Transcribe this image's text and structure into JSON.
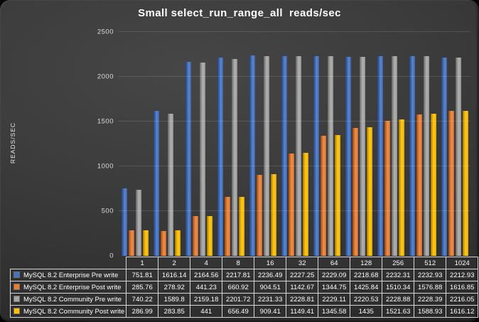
{
  "chart": {
    "title": "Small select_run_range_all  reads/sec",
    "ylabel": "READS/SEC"
  },
  "chart_data": {
    "type": "bar",
    "title": "Small select_run_range_all  reads/sec",
    "xlabel": "",
    "ylabel": "READS/SEC",
    "ylim": [
      0,
      2500
    ],
    "yticks": [
      0,
      500,
      1000,
      1500,
      2000,
      2500
    ],
    "grid": true,
    "legend_position": "data-table-bottom",
    "background_color": "#3c3c3c",
    "categories": [
      "1",
      "2",
      "4",
      "8",
      "16",
      "32",
      "64",
      "128",
      "256",
      "512",
      "1024"
    ],
    "series": [
      {
        "name": "MySQL 8.2 Enterprise Pre write",
        "color": "#4472C4",
        "values": [
          751.81,
          1616.14,
          2164.56,
          2217.81,
          2236.49,
          2227.25,
          2229.09,
          2218.68,
          2232.31,
          2232.93,
          2212.93
        ]
      },
      {
        "name": "MySQL 8.2 Enterprise Post write",
        "color": "#ED7D31",
        "values": [
          285.76,
          278.92,
          441.23,
          660.92,
          904.51,
          1142.67,
          1344.75,
          1425.84,
          1510.34,
          1576.88,
          1616.85
        ]
      },
      {
        "name": "MySQL 8.2 Community Pre write",
        "color": "#A5A5A5",
        "values": [
          740.22,
          1589.8,
          2159.18,
          2201.72,
          2231.33,
          2228.81,
          2229.11,
          2220.53,
          2228.88,
          2228.39,
          2216.05
        ]
      },
      {
        "name": "MySQL 8.2 Community Post write",
        "color": "#FFC000",
        "values": [
          286.99,
          283.85,
          441,
          656.49,
          909.41,
          1149.41,
          1345.58,
          1435,
          1521.63,
          1588.93,
          1616.12
        ]
      }
    ]
  }
}
